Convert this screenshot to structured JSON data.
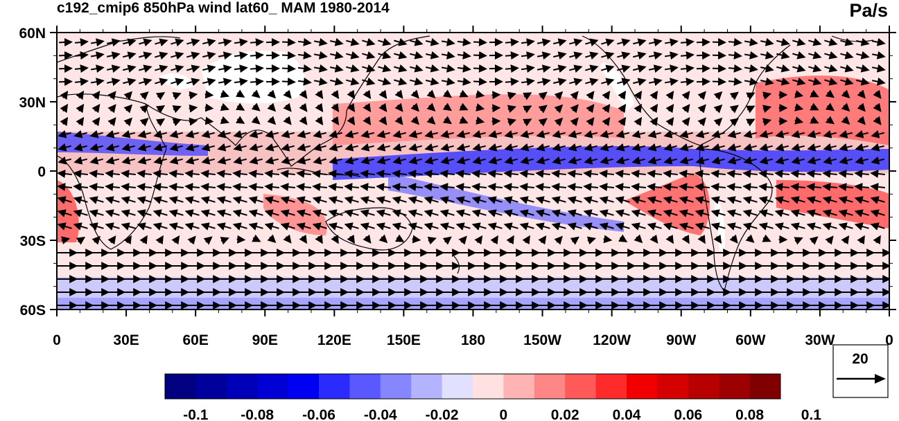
{
  "title": "c192_cmip6 850hPa wind lat60_ MAM 1980-2014",
  "units": "Pa/s",
  "map": {
    "lon_labels": [
      "0",
      "30E",
      "60E",
      "90E",
      "120E",
      "150E",
      "180",
      "150W",
      "120W",
      "90W",
      "60W",
      "30W",
      "0"
    ],
    "lat_labels": [
      "60N",
      "30N",
      "0",
      "30S",
      "60S"
    ],
    "lat_range": [
      -60,
      60
    ],
    "lon_range": [
      0,
      360
    ]
  },
  "colorbar": {
    "colors": [
      "#000080",
      "#00009c",
      "#0000b8",
      "#0000d5",
      "#0000f2",
      "#2b2bff",
      "#5959ff",
      "#8686ff",
      "#b3b3ff",
      "#e1e1ff",
      "#ffe1e1",
      "#ffb3b3",
      "#ff8686",
      "#ff5959",
      "#ff2b2b",
      "#f20000",
      "#d50000",
      "#b80000",
      "#9c0000",
      "#800000"
    ],
    "tick_labels": [
      "-0.1",
      "-0.08",
      "-0.06",
      "-0.04",
      "-0.02",
      "0",
      "0.02",
      "0.04",
      "0.06",
      "0.08",
      "0.1"
    ]
  },
  "reference_vector": {
    "magnitude_label": "20"
  }
}
